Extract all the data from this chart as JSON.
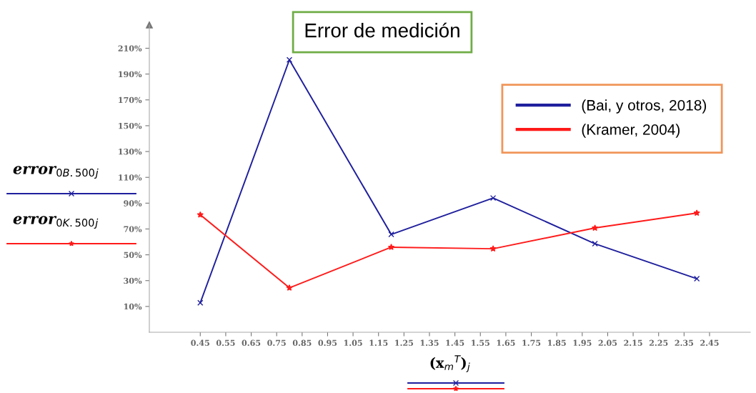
{
  "chart_data": {
    "type": "line",
    "title": "Error de medición",
    "xlabel": "(x$_{m}$$^{T}$)$_{j}$",
    "annotations": [
      "error$_{0B.500}$$_{j}$",
      "error$_{0K.500}$$_{j}$"
    ],
    "series": [
      {
        "name": "(Bai, y otros, 2018)",
        "color": "#1f1f9e",
        "marker": "cross",
        "x": [
          0.45,
          0.8,
          1.2,
          1.6,
          2.0,
          2.4
        ],
        "values": [
          12.8,
          201,
          65.8,
          94,
          58.6,
          31.5
        ]
      },
      {
        "name": "(Kramer, 2004)",
        "color": "#ff1a1a",
        "marker": "star",
        "x": [
          0.45,
          0.8,
          1.2,
          1.6,
          2.0,
          2.4
        ],
        "values": [
          81,
          24.4,
          55.9,
          54.7,
          70.8,
          82.4
        ]
      }
    ],
    "xlim": [
      0.25,
      2.61
    ],
    "ylim": [
      -10,
      228
    ],
    "xticks": [
      0.45,
      0.55,
      0.65,
      0.75,
      0.85,
      0.95,
      1.05,
      1.15,
      1.25,
      1.35,
      1.45,
      1.55,
      1.65,
      1.75,
      1.85,
      1.95,
      2.05,
      2.15,
      2.25,
      2.35,
      2.45
    ],
    "yticks": [
      {
        "value": 10,
        "label": "10%"
      },
      {
        "value": 30,
        "label": "30%"
      },
      {
        "value": 50,
        "label": "50%"
      },
      {
        "value": 70,
        "label": "70%"
      },
      {
        "value": 90,
        "label": "90%"
      },
      {
        "value": 110,
        "label": "110%"
      },
      {
        "value": 130,
        "label": "130%"
      },
      {
        "value": 150,
        "label": "150%"
      },
      {
        "value": 170,
        "label": "170%"
      },
      {
        "value": 190,
        "label": "190%"
      },
      {
        "value": 210,
        "label": "210%"
      }
    ],
    "grid": false,
    "legend": "top right"
  }
}
